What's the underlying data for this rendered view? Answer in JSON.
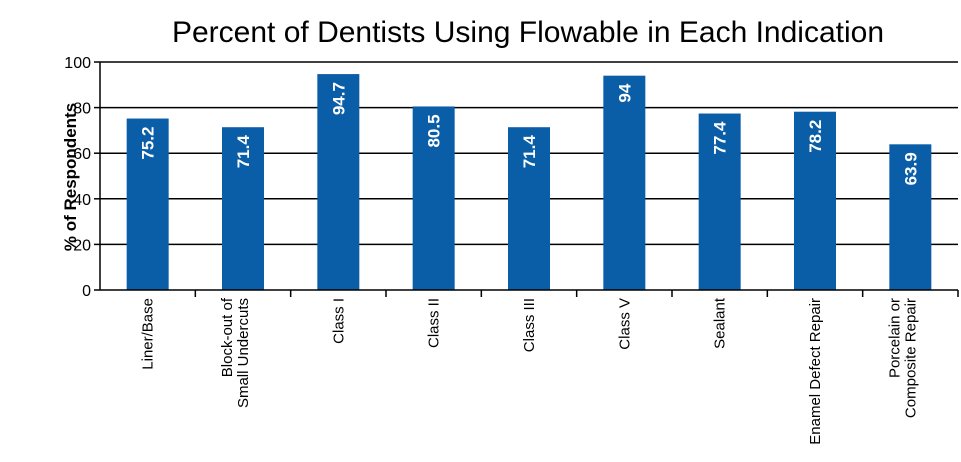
{
  "chart_data": {
    "type": "bar",
    "title": "Percent of Dentists Using Flowable in Each Indication",
    "ylabel": "% of Respondents",
    "xlabel": "",
    "ylim": [
      0,
      100
    ],
    "yticks": [
      0,
      20,
      40,
      60,
      80,
      100
    ],
    "grid": true,
    "categories": [
      [
        "Liner/Base"
      ],
      [
        "Block-out of",
        "Small Undercuts"
      ],
      [
        "Class I"
      ],
      [
        "Class II"
      ],
      [
        "Class III"
      ],
      [
        "Class V"
      ],
      [
        "Sealant"
      ],
      [
        "Enamel Defect Repair"
      ],
      [
        "Porcelain or",
        "Composite Repair"
      ]
    ],
    "values": [
      75.2,
      71.4,
      94.7,
      80.5,
      71.4,
      94,
      77.4,
      78.2,
      63.9
    ],
    "data_labels": [
      "75.2",
      "71.4",
      "94.7",
      "80.5",
      "71.4",
      "94",
      "77.4",
      "78.2",
      "63.9"
    ],
    "bar_color": "#0a5ea8"
  }
}
